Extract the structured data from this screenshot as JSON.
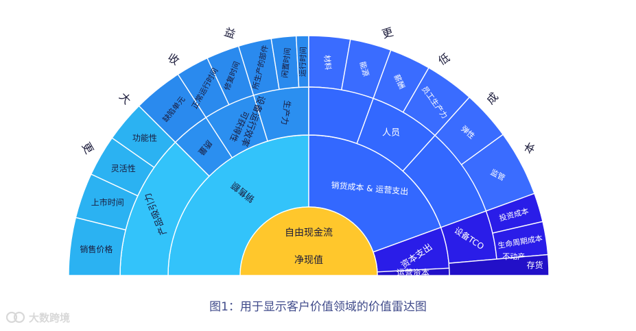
{
  "caption": "图1：用于显示客户价值领域的价值雷达图",
  "watermark": "大数跨境",
  "colors": {
    "gold": "#ffc72c",
    "cyan": "#33c3fa",
    "cyan_outer": "#2bb2f2",
    "mid_blue": "#2b8ff0",
    "mid_blue_outer": "#2a8aee",
    "royal": "#3368ff",
    "royal_outer": "#3a6cff",
    "indigo": "#2a1de8",
    "indigo_deep": "#2210c8"
  },
  "center": {
    "top": "自由现金流",
    "bottom": "净现值"
  },
  "arc_labels": {
    "left": [
      "更",
      "大",
      "收",
      "益"
    ],
    "right": [
      "更",
      "低",
      "成",
      "本"
    ]
  },
  "segments": {
    "sales": "销售额",
    "product_appeal": "产品吸引力",
    "sales_price": "销售价格",
    "time_to_market": "上市时间",
    "flexibility": "灵活性",
    "functionality": "功能性",
    "equipment_efficiency": "设备运行效率",
    "quality": "质量",
    "defect_units": "缺陷单元",
    "availability": "可获得性",
    "normal_uptime": "正常运行时间",
    "repair_time": "修复时间",
    "productivity": "生产力",
    "parts_produced": "所生产的部件",
    "idle_time": "闲置时间",
    "run_time": "运行时间",
    "cogs_opex": "销货成本 & 运营支出",
    "materials": "材料",
    "energy": "能源",
    "personnel": "人员",
    "salary": "薪酬",
    "employee_productivity": "员工生产力",
    "elasticity": "弹性",
    "supervision": "监管",
    "capex": "资本支出",
    "equipment_tco": "设备TCO",
    "investment_cost": "投资成本",
    "lifecycle_cost": "生命周期成本",
    "real_estate": "不动产",
    "working_capital": "运营资本",
    "inventory": "存货"
  }
}
